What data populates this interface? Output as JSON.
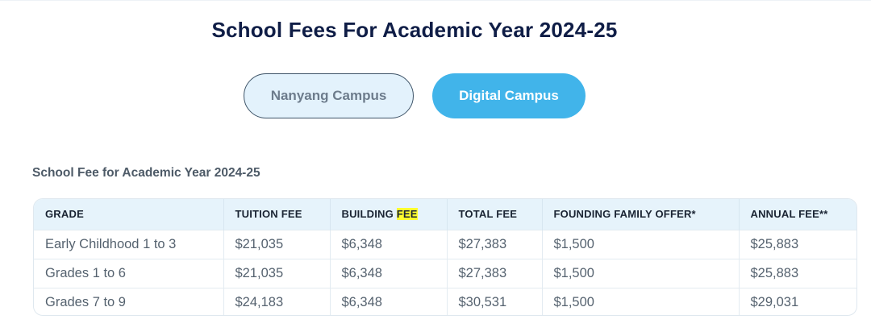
{
  "page": {
    "heading": "School Fees For Academic Year 2024-25",
    "section_title": "School Fee for Academic Year 2024-25"
  },
  "campus_tabs": [
    {
      "label": "Nanyang Campus",
      "active": false
    },
    {
      "label": "Digital Campus",
      "active": true
    }
  ],
  "table": {
    "headers": {
      "grade": "GRADE",
      "tuition_fee": "TUITION FEE",
      "building_prefix": "BUILDING ",
      "building_highlight": "FEE",
      "total_fee": "TOTAL FEE",
      "founding_family_offer": "FOUNDING FAMILY OFFER*",
      "annual_fee": "ANNUAL FEE**"
    },
    "rows": [
      [
        "Early Childhood 1 to 3",
        "$21,035",
        "$6,348",
        "$27,383",
        "$1,500",
        "$25,883"
      ],
      [
        "Grades 1 to 6",
        "$21,035",
        "$6,348",
        "$27,383",
        "$1,500",
        "$25,883"
      ],
      [
        "Grades 7 to 9",
        "$24,183",
        "$6,348",
        "$30,531",
        "$1,500",
        "$29,031"
      ]
    ]
  },
  "colors": {
    "heading": "#0f1d46",
    "active_tab": "#41b4ea",
    "inactive_tab": "#e3f2fc",
    "table_header": "#e6f3fb",
    "highlight": "#ffff2e"
  }
}
